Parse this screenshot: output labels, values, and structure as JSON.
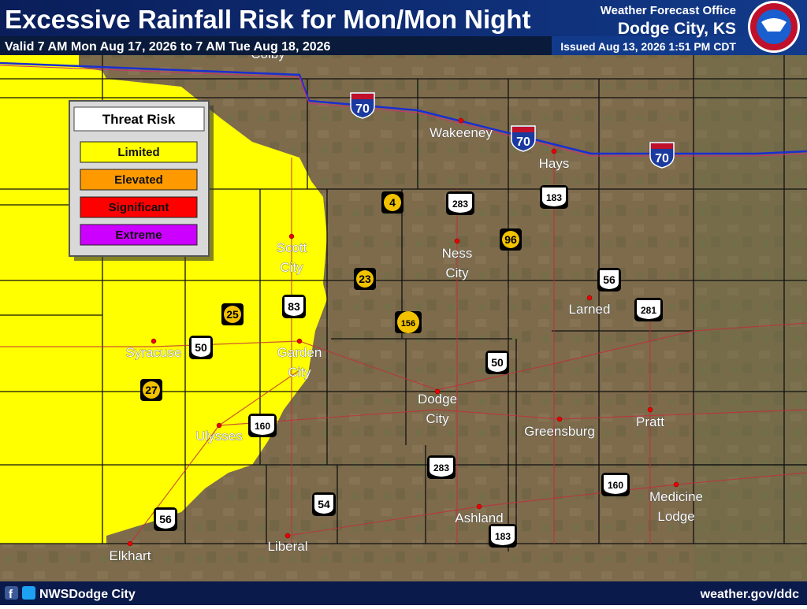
{
  "header": {
    "title": "Excessive Rainfall Risk for Mon/Mon Night",
    "valid": "Valid 7 AM Mon Aug 17, 2026 to 7 AM Tue Aug 18, 2026",
    "office": "Weather Forecast Office",
    "office_location": "Dodge City, KS",
    "issued": "Issued Aug 13, 2026 1:51 PM CDT"
  },
  "legend": {
    "title": "Threat Risk",
    "items": [
      {
        "label": "Limited",
        "color": "#ffff00"
      },
      {
        "label": "Elevated",
        "color": "#ff9900"
      },
      {
        "label": "Significant",
        "color": "#ff0000"
      },
      {
        "label": "Extreme",
        "color": "#cc00ff"
      }
    ]
  },
  "map": {
    "cities": [
      {
        "name": [
          "Colby"
        ]
      },
      {
        "name": [
          "Wakeeney"
        ]
      },
      {
        "name": [
          "Hays"
        ]
      },
      {
        "name": [
          "Ness",
          "City"
        ]
      },
      {
        "name": [
          "Scott",
          "City"
        ]
      },
      {
        "name": [
          "Larned"
        ]
      },
      {
        "name": [
          "Syracuse"
        ]
      },
      {
        "name": [
          "Garden",
          "City"
        ]
      },
      {
        "name": [
          "Dodge",
          "City"
        ]
      },
      {
        "name": [
          "Greensburg"
        ]
      },
      {
        "name": [
          "Pratt"
        ]
      },
      {
        "name": [
          "Ulysses"
        ]
      },
      {
        "name": [
          "Medicine",
          "Lodge"
        ]
      },
      {
        "name": [
          "Ashland"
        ]
      },
      {
        "name": [
          "Liberal"
        ]
      },
      {
        "name": [
          "Elkhart"
        ]
      }
    ],
    "highways": [
      {
        "type": "interstate",
        "label": "70"
      },
      {
        "type": "interstate",
        "label": "70"
      },
      {
        "type": "interstate",
        "label": "70"
      },
      {
        "type": "us",
        "label": "283"
      },
      {
        "type": "us",
        "label": "183"
      },
      {
        "type": "us",
        "label": "56"
      },
      {
        "type": "us",
        "label": "281"
      },
      {
        "type": "us",
        "label": "83"
      },
      {
        "type": "us",
        "label": "50"
      },
      {
        "type": "us",
        "label": "50"
      },
      {
        "type": "us",
        "label": "160"
      },
      {
        "type": "us",
        "label": "283"
      },
      {
        "type": "us",
        "label": "54"
      },
      {
        "type": "us",
        "label": "160"
      },
      {
        "type": "us",
        "label": "56"
      },
      {
        "type": "us",
        "label": "183"
      },
      {
        "type": "state",
        "label": "4"
      },
      {
        "type": "state",
        "label": "96"
      },
      {
        "type": "state",
        "label": "23"
      },
      {
        "type": "state",
        "label": "25"
      },
      {
        "type": "state",
        "label": "156"
      },
      {
        "type": "state",
        "label": "27"
      }
    ]
  },
  "footer": {
    "social": "NWSDodge City",
    "website": "weather.gov/ddc"
  }
}
